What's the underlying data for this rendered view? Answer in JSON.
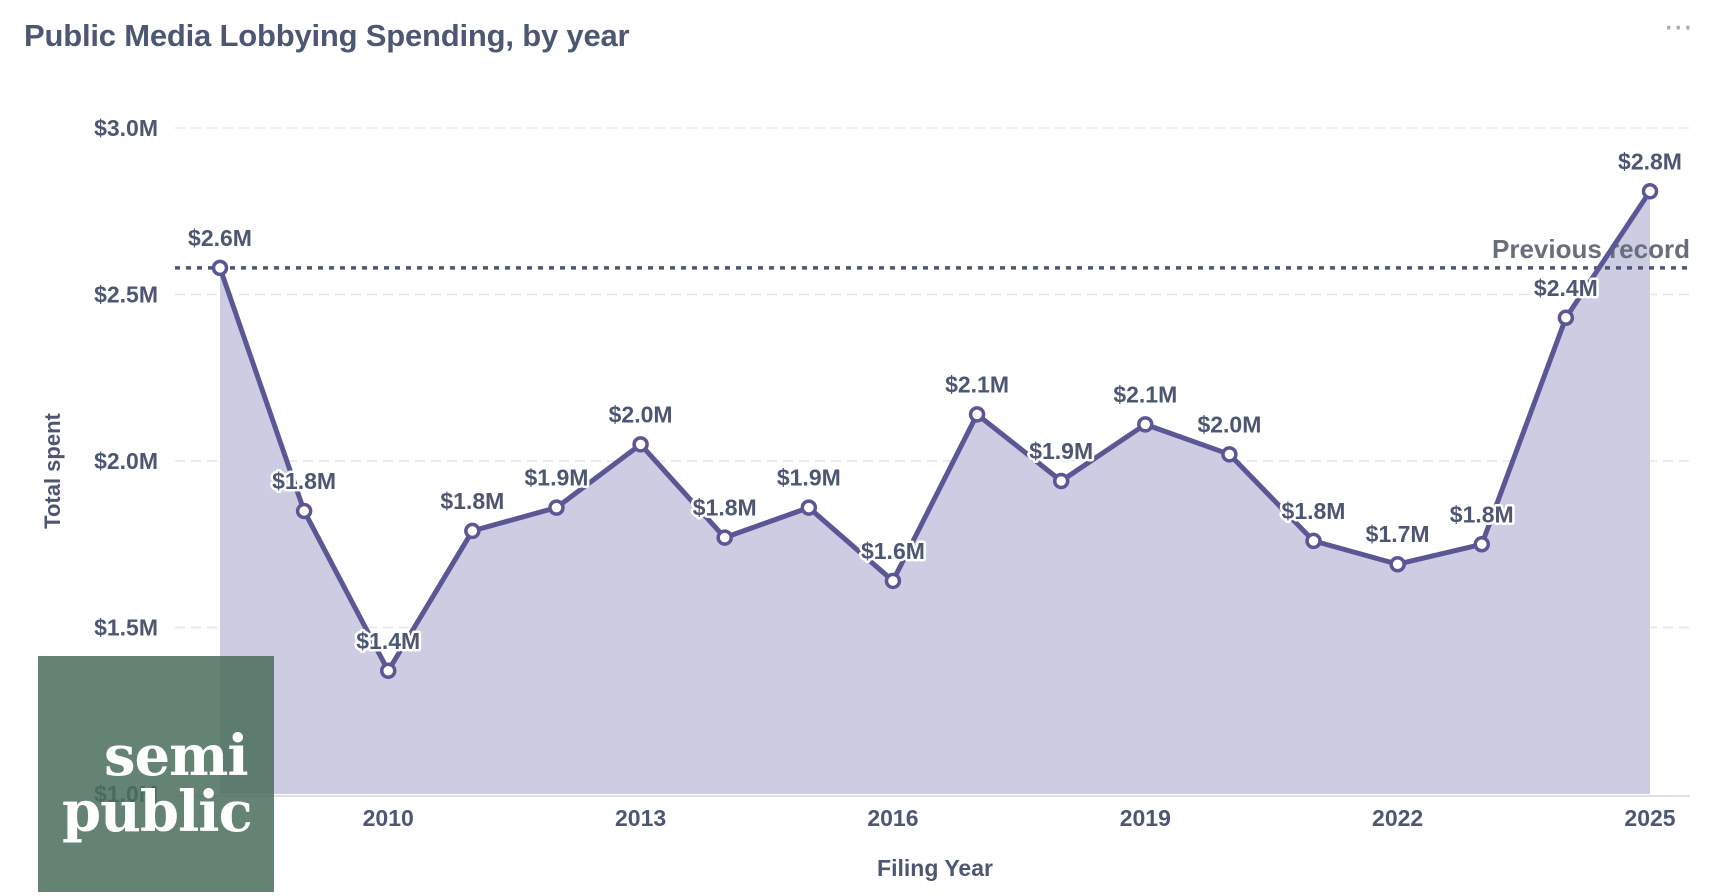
{
  "card": {
    "title": "Public Media Lobbying Spending, by year",
    "menu_icon": "more-horizontal-icon",
    "menu_label": "···"
  },
  "watermark": {
    "line1": "semi",
    "line2": "public",
    "color": "#496d5b"
  },
  "colors": {
    "series": "#5a5794",
    "area": "#c9c9e0",
    "axis_text": "#4c5773",
    "grid": "#e3e5ea",
    "reference": "#4c5773",
    "reference_text": "#696e7b"
  },
  "chart_data": {
    "type": "line",
    "title": "Public Media Lobbying Spending, by year",
    "xlabel": "Filing Year",
    "ylabel": "Total spent",
    "x": [
      2008,
      2009,
      2010,
      2011,
      2012,
      2013,
      2014,
      2015,
      2016,
      2017,
      2018,
      2019,
      2020,
      2021,
      2022,
      2023,
      2024,
      2025
    ],
    "series": [
      {
        "values": [
          2.58,
          1.85,
          1.37,
          1.79,
          1.86,
          2.05,
          1.77,
          1.86,
          1.64,
          2.14,
          1.94,
          2.11,
          2.02,
          1.76,
          1.69,
          1.75,
          2.43,
          2.81
        ],
        "data_labels": [
          "$2.6M",
          "$1.8M",
          "$1.4M",
          "$1.8M",
          "$1.9M",
          "$2.0M",
          "$1.8M",
          "$1.9M",
          "$1.6M",
          "$2.1M",
          "$1.9M",
          "$2.1M",
          "$2.0M",
          "$1.8M",
          "$1.7M",
          "$1.8M",
          "$2.4M",
          "$2.8M"
        ]
      }
    ],
    "area_fill": true,
    "ylim": [
      1.0,
      3.0
    ],
    "yticks": [
      1.0,
      1.5,
      2.0,
      2.5,
      3.0
    ],
    "ytick_labels": [
      "$1.0M",
      "$1.5M",
      "$2.0M",
      "$2.5M",
      "$3.0M"
    ],
    "xticks": [
      2010,
      2013,
      2016,
      2019,
      2022,
      2025
    ],
    "xtick_labels": [
      "2010",
      "2013",
      "2016",
      "2019",
      "2022",
      "2025"
    ],
    "grid": true,
    "reference_line": {
      "value": 2.58,
      "label": "Previous record",
      "style": "dotted"
    }
  }
}
